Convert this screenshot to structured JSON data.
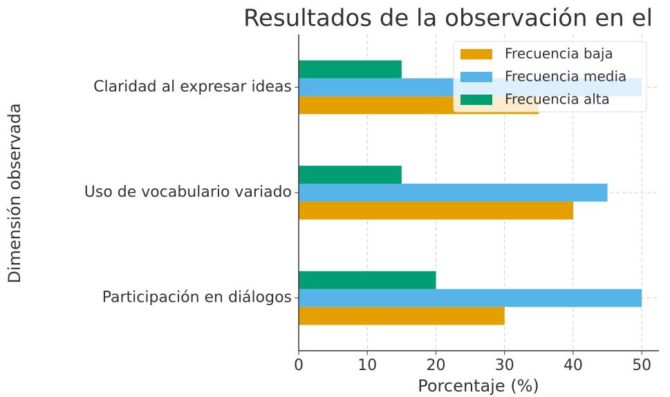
{
  "chart_data": {
    "type": "barh",
    "title": "Resultados de la observación en el",
    "xlabel": "Porcentaje (%)",
    "ylabel": "Dimensión observada",
    "categories": [
      "Participación en diálogos",
      "Uso de vocabulario variado",
      "Claridad al expresar ideas"
    ],
    "series": [
      {
        "name": "Frecuencia baja",
        "color": "#E69F00",
        "values": [
          30,
          40,
          35
        ]
      },
      {
        "name": "Frecuencia media",
        "color": "#56B4E9",
        "values": [
          50,
          45,
          50
        ]
      },
      {
        "name": "Frecuencia alta",
        "color": "#009E73",
        "values": [
          20,
          15,
          15
        ]
      }
    ],
    "xlim": [
      0,
      52.5
    ],
    "xticks": [
      0,
      10,
      20,
      30,
      40,
      50
    ],
    "grid": true,
    "legend": "upper right"
  }
}
